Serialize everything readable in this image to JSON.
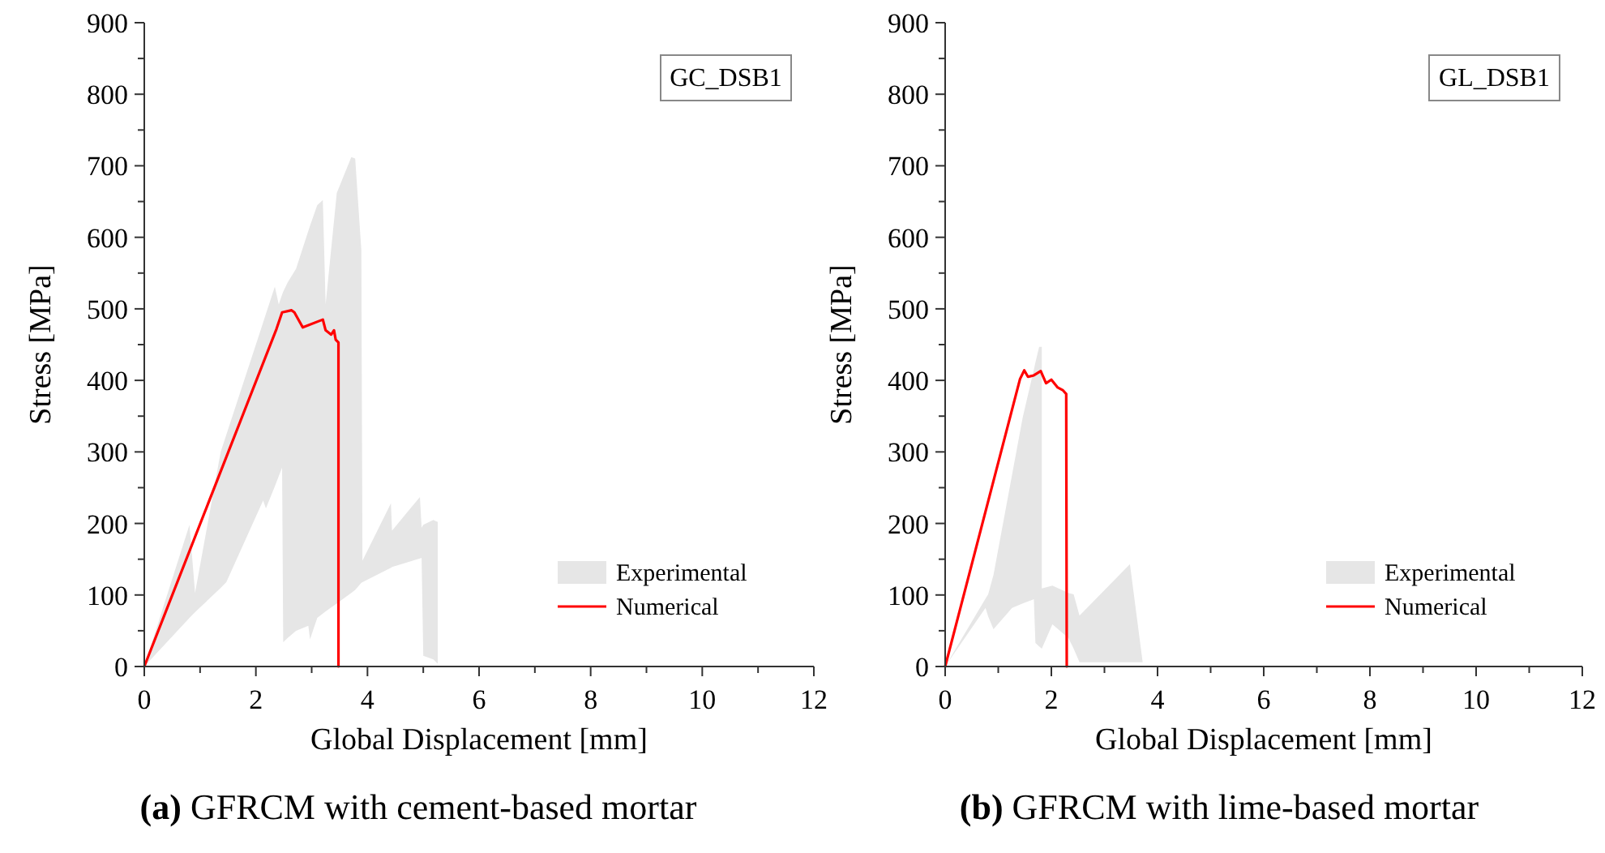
{
  "chart_data": [
    {
      "type": "area",
      "title": "(a) GFRCM with cement-based mortar",
      "xlabel": "Global Displacement [mm]",
      "ylabel": "Stress [MPa]",
      "annotations": [
        "GC_DSB1"
      ],
      "xlim": [
        0,
        12
      ],
      "ylim": [
        0,
        900
      ],
      "xticks": [
        0,
        {
          "value": 1,
          "label": null
        },
        2,
        {
          "value": 3,
          "label": null
        },
        4,
        {
          "value": 5,
          "label": null
        },
        6,
        {
          "value": 7,
          "label": null
        },
        8,
        {
          "value": 9,
          "label": null
        },
        10,
        {
          "value": 11,
          "label": null
        },
        12
      ],
      "yticks": [
        0,
        {
          "value": 50,
          "label": null
        },
        100,
        {
          "value": 150,
          "label": null
        },
        200,
        {
          "value": 250,
          "label": null
        },
        300,
        {
          "value": 350,
          "label": null
        },
        400,
        {
          "value": 450,
          "label": null
        },
        500,
        {
          "value": 550,
          "label": null
        },
        600,
        {
          "value": 650,
          "label": null
        },
        700,
        {
          "value": 750,
          "label": null
        },
        800,
        {
          "value": 850,
          "label": null
        },
        900
      ],
      "legend": "bottom right",
      "series": [
        {
          "name": "Experimental",
          "color": "#e6e6e6",
          "x": [
            0,
            0.81,
            0.91,
            1.37,
            1.47,
            2.13,
            2.18,
            2.34,
            2.41,
            2.47,
            2.49,
            2.57,
            2.72,
            2.94,
            2.97,
            3.1,
            3.2,
            3.25,
            3.45,
            3.71,
            3.78,
            3.89,
            3.91,
            4.42,
            4.44,
            4.94,
            4.97,
            5.0,
            5.18,
            5.26
          ],
          "values": [
            null,
            null,
            null,
            null,
            null,
            null,
            null,
            null,
            null,
            null,
            null,
            null,
            null,
            null,
            null,
            null,
            null,
            null,
            null,
            null,
            null,
            null,
            null,
            null,
            null,
            null,
            null,
            null,
            null,
            null
          ],
          "upper": [
            0,
            198,
            103,
            300,
            324,
            481,
            493,
            531,
            506,
            520,
            524,
            537,
            556,
            609,
            616,
            645,
            652,
            506,
            662,
            712,
            710,
            582,
            148,
            228,
            190,
            237,
            194,
            198,
            205,
            202
          ],
          "lower": [
            0,
            68,
            76,
            110,
            118,
            232,
            221,
            252,
            266,
            278,
            34,
            40,
            50,
            57,
            38,
            68,
            74,
            77,
            88,
            103,
            107,
            117,
            118,
            138,
            139,
            151,
            152,
            15,
            10,
            4
          ]
        },
        {
          "name": "Numerical",
          "type": "line",
          "color": "#ff0000",
          "x": [
            0,
            2.37,
            2.47,
            2.64,
            2.69,
            2.84,
            3.2,
            3.25,
            3.35,
            3.4,
            3.43,
            3.48,
            3.48
          ],
          "values": [
            0,
            472,
            495,
            498,
            495,
            474,
            485,
            470,
            464,
            470,
            457,
            453,
            0
          ]
        }
      ]
    },
    {
      "type": "area",
      "title": "(b) GFRCM with lime-based mortar",
      "xlabel": "Global Displacement [mm]",
      "ylabel": "Stress [MPa]",
      "annotations": [
        "GL_DSB1"
      ],
      "xlim": [
        0,
        12
      ],
      "ylim": [
        0,
        900
      ],
      "xticks": [
        0,
        {
          "value": 1,
          "label": null
        },
        2,
        {
          "value": 3,
          "label": null
        },
        4,
        {
          "value": 5,
          "label": null
        },
        6,
        {
          "value": 7,
          "label": null
        },
        8,
        {
          "value": 9,
          "label": null
        },
        10,
        {
          "value": 11,
          "label": null
        },
        12
      ],
      "yticks": [
        0,
        {
          "value": 50,
          "label": null
        },
        100,
        {
          "value": 150,
          "label": null
        },
        200,
        {
          "value": 250,
          "label": null
        },
        300,
        {
          "value": 350,
          "label": null
        },
        400,
        {
          "value": 450,
          "label": null
        },
        500,
        {
          "value": 550,
          "label": null
        },
        600,
        {
          "value": 650,
          "label": null
        },
        700,
        {
          "value": 750,
          "label": null
        },
        800,
        {
          "value": 850,
          "label": null
        },
        900
      ],
      "legend": "bottom right",
      "series": [
        {
          "name": "Experimental",
          "color": "#e6e6e6",
          "x": [
            0,
            0.76,
            0.81,
            0.91,
            1.26,
            1.46,
            1.67,
            1.7,
            1.77,
            1.82,
            1.82,
            2.02,
            2.32,
            2.42,
            2.53,
            3.48,
            3.72
          ],
          "values": [
            null,
            null,
            null,
            null,
            null,
            null,
            null,
            null,
            null,
            null,
            null,
            null,
            null,
            null,
            null,
            null,
            null
          ],
          "upper": [
            0,
            95,
            101,
            128,
            268,
            348,
            415,
            425,
            447,
            447,
            109,
            113,
            103,
            101,
            71,
            143,
            6
          ],
          "lower": [
            0,
            82,
            70,
            52,
            82,
            88,
            94,
            33,
            28,
            25,
            25,
            59,
            40,
            25,
            6,
            6,
            6
          ]
        },
        {
          "name": "Numerical",
          "type": "line",
          "color": "#ff0000",
          "x": [
            0,
            1.41,
            1.49,
            1.56,
            1.67,
            1.8,
            1.9,
            2.0,
            2.12,
            2.22,
            2.28,
            2.29
          ],
          "values": [
            0,
            402,
            414,
            405,
            407,
            413,
            396,
            401,
            390,
            386,
            381,
            0
          ]
        }
      ]
    }
  ]
}
